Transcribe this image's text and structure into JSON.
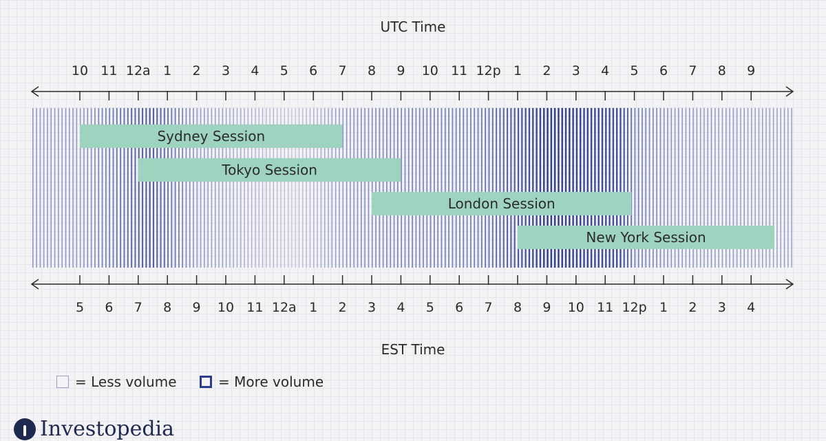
{
  "top_axis": {
    "title": "UTC Time",
    "labels": [
      "10",
      "11",
      "12a",
      "1",
      "2",
      "3",
      "4",
      "5",
      "6",
      "7",
      "8",
      "9",
      "10",
      "11",
      "12p",
      "1",
      "2",
      "3",
      "4",
      "5",
      "6",
      "7",
      "8",
      "9"
    ]
  },
  "bottom_axis": {
    "title": "EST Time",
    "labels": [
      "5",
      "6",
      "7",
      "8",
      "9",
      "10",
      "11",
      "12a",
      "1",
      "2",
      "3",
      "4",
      "5",
      "6",
      "7",
      "8",
      "9",
      "10",
      "11",
      "12p",
      "1",
      "2",
      "3",
      "4"
    ]
  },
  "sessions": [
    {
      "label": "Sydney Session",
      "start_index": 0,
      "end_index": 9
    },
    {
      "label": "Tokyo Session",
      "start_index": 2,
      "end_index": 11
    },
    {
      "label": "London Session",
      "start_index": 10,
      "end_index": 18.9
    },
    {
      "label": "New York Session",
      "start_index": 15,
      "end_index": 23.8
    }
  ],
  "volume_profile": [
    [
      0,
      0.35
    ],
    [
      2.4,
      0.75
    ],
    [
      4,
      0.35
    ],
    [
      7.3,
      0.1
    ],
    [
      9,
      0.35
    ],
    [
      10.5,
      0.45
    ],
    [
      13.5,
      0.5
    ],
    [
      16,
      0.95
    ],
    [
      18.5,
      0.85
    ],
    [
      19,
      0.5
    ],
    [
      20.5,
      0.35
    ],
    [
      23.8,
      0.3
    ]
  ],
  "legend": {
    "less_label": "= Less volume",
    "more_label": "= More volume"
  },
  "brand": {
    "name": "Investopedia"
  },
  "colors": {
    "session_fill": "#9ed4bf",
    "bar_low": "#c5c9e4",
    "bar_high": "#2a3c8e",
    "axis": "#2b2b2b"
  }
}
